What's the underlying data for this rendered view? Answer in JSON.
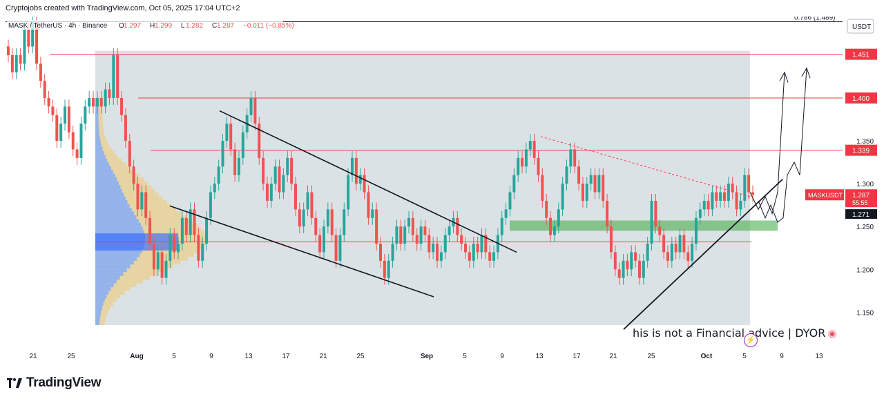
{
  "header": {
    "caption": "Cryptojobs created with TradingView.com, Oct 05, 2025 17:04 UTC+2",
    "symbol_line": "MASK / TetherUS · 4h · Binance",
    "ohlc": {
      "open_label": "O",
      "open": "1.297",
      "high_label": "H",
      "high": "1.299",
      "low_label": "L",
      "low": "1.282",
      "close_label": "C",
      "close": "1.287",
      "change": "−0.011 (−0.85%)"
    }
  },
  "currency_label": "USDT",
  "fib_label": "0.786 (1.489)",
  "price_tags": {
    "r1": "1.451",
    "r2": "1.400",
    "r3": "1.339",
    "symbol": "MASKUSDT",
    "last": "1.287",
    "countdown": "55:55",
    "marker": "1.271"
  },
  "disclaimer": "his is not a Financial advice | DYOR",
  "footer_brand": "TradingView",
  "colors": {
    "up": "#26a69a",
    "down": "#ef5350",
    "resistance": "#f23645",
    "demand_zone": "#4caf50",
    "vp_up": "#f5c452",
    "vp_down": "#5b8def",
    "background_shade": "#d5dde2"
  },
  "chart_data": {
    "type": "candlestick",
    "title": "MASK / TetherUS · 4h · Binance",
    "ylim": [
      1.11,
      1.495
    ],
    "y_ticks": [
      1.15,
      1.2,
      1.25,
      1.3,
      1.35
    ],
    "x_ticks": [
      "21",
      "25",
      "Aug",
      "5",
      "9",
      "13",
      "17",
      "21",
      "25",
      "Sep",
      "5",
      "9",
      "13",
      "17",
      "21",
      "25",
      "Oct",
      "5",
      "9",
      "13"
    ],
    "horizontal_levels": [
      1.451,
      1.4,
      1.339,
      1.232
    ],
    "fib_level": 1.489,
    "demand_zone": [
      1.245,
      1.257
    ],
    "series": [
      {
        "name": "MASKUSDT",
        "points": [
          [
            1.46,
            1.45
          ],
          [
            1.45,
            1.43
          ],
          [
            1.43,
            1.45
          ],
          [
            1.45,
            1.44
          ],
          [
            1.44,
            1.48
          ],
          [
            1.48,
            1.46
          ],
          [
            1.46,
            1.49
          ],
          [
            1.49,
            1.44
          ],
          [
            1.44,
            1.42
          ],
          [
            1.42,
            1.4
          ],
          [
            1.4,
            1.39
          ],
          [
            1.39,
            1.38
          ],
          [
            1.38,
            1.35
          ],
          [
            1.35,
            1.37
          ],
          [
            1.37,
            1.39
          ],
          [
            1.39,
            1.36
          ],
          [
            1.36,
            1.34
          ],
          [
            1.34,
            1.33
          ],
          [
            1.33,
            1.37
          ],
          [
            1.37,
            1.39
          ],
          [
            1.39,
            1.4
          ],
          [
            1.4,
            1.39
          ],
          [
            1.39,
            1.4
          ],
          [
            1.4,
            1.39
          ],
          [
            1.39,
            1.41
          ],
          [
            1.41,
            1.4
          ],
          [
            1.4,
            1.45
          ],
          [
            1.45,
            1.4
          ],
          [
            1.4,
            1.38
          ],
          [
            1.38,
            1.35
          ],
          [
            1.35,
            1.32
          ],
          [
            1.32,
            1.3
          ],
          [
            1.3,
            1.27
          ],
          [
            1.27,
            1.29
          ],
          [
            1.29,
            1.26
          ],
          [
            1.26,
            1.23
          ],
          [
            1.23,
            1.2
          ],
          [
            1.2,
            1.22
          ],
          [
            1.22,
            1.19
          ],
          [
            1.19,
            1.21
          ],
          [
            1.21,
            1.24
          ],
          [
            1.24,
            1.22
          ],
          [
            1.22,
            1.23
          ],
          [
            1.23,
            1.26
          ],
          [
            1.26,
            1.24
          ],
          [
            1.24,
            1.27
          ],
          [
            1.27,
            1.24
          ],
          [
            1.24,
            1.21
          ],
          [
            1.21,
            1.23
          ],
          [
            1.23,
            1.26
          ],
          [
            1.26,
            1.29
          ],
          [
            1.29,
            1.3
          ],
          [
            1.3,
            1.32
          ],
          [
            1.32,
            1.35
          ],
          [
            1.35,
            1.37
          ],
          [
            1.37,
            1.34
          ],
          [
            1.34,
            1.31
          ],
          [
            1.31,
            1.33
          ],
          [
            1.33,
            1.36
          ],
          [
            1.36,
            1.38
          ],
          [
            1.38,
            1.4
          ],
          [
            1.4,
            1.37
          ],
          [
            1.37,
            1.33
          ],
          [
            1.33,
            1.3
          ],
          [
            1.3,
            1.28
          ],
          [
            1.28,
            1.3
          ],
          [
            1.3,
            1.32
          ],
          [
            1.32,
            1.29
          ],
          [
            1.29,
            1.31
          ],
          [
            1.31,
            1.33
          ],
          [
            1.33,
            1.3
          ],
          [
            1.3,
            1.27
          ],
          [
            1.27,
            1.25
          ],
          [
            1.25,
            1.27
          ],
          [
            1.27,
            1.29
          ],
          [
            1.29,
            1.26
          ],
          [
            1.26,
            1.24
          ],
          [
            1.24,
            1.22
          ],
          [
            1.22,
            1.25
          ],
          [
            1.25,
            1.27
          ],
          [
            1.27,
            1.24
          ],
          [
            1.24,
            1.21
          ],
          [
            1.21,
            1.24
          ],
          [
            1.24,
            1.27
          ],
          [
            1.27,
            1.31
          ],
          [
            1.31,
            1.33
          ],
          [
            1.33,
            1.3
          ],
          [
            1.3,
            1.31
          ],
          [
            1.31,
            1.29
          ],
          [
            1.29,
            1.26
          ],
          [
            1.26,
            1.27
          ],
          [
            1.27,
            1.23
          ],
          [
            1.23,
            1.21
          ],
          [
            1.21,
            1.19
          ],
          [
            1.19,
            1.21
          ],
          [
            1.21,
            1.23
          ],
          [
            1.23,
            1.25
          ],
          [
            1.25,
            1.23
          ],
          [
            1.23,
            1.25
          ],
          [
            1.25,
            1.26
          ],
          [
            1.26,
            1.24
          ],
          [
            1.24,
            1.23
          ],
          [
            1.23,
            1.25
          ],
          [
            1.25,
            1.24
          ],
          [
            1.24,
            1.22
          ],
          [
            1.22,
            1.23
          ],
          [
            1.23,
            1.21
          ],
          [
            1.21,
            1.22
          ],
          [
            1.22,
            1.24
          ],
          [
            1.24,
            1.25
          ],
          [
            1.25,
            1.26
          ],
          [
            1.26,
            1.24
          ],
          [
            1.24,
            1.23
          ],
          [
            1.23,
            1.22
          ],
          [
            1.22,
            1.21
          ],
          [
            1.21,
            1.23
          ],
          [
            1.23,
            1.22
          ],
          [
            1.22,
            1.24
          ],
          [
            1.24,
            1.22
          ],
          [
            1.22,
            1.21
          ],
          [
            1.21,
            1.22
          ],
          [
            1.22,
            1.24
          ],
          [
            1.24,
            1.26
          ],
          [
            1.26,
            1.27
          ],
          [
            1.27,
            1.29
          ],
          [
            1.29,
            1.31
          ],
          [
            1.31,
            1.33
          ],
          [
            1.33,
            1.32
          ],
          [
            1.32,
            1.34
          ],
          [
            1.34,
            1.35
          ],
          [
            1.35,
            1.33
          ],
          [
            1.33,
            1.31
          ],
          [
            1.31,
            1.28
          ],
          [
            1.28,
            1.26
          ],
          [
            1.26,
            1.24
          ],
          [
            1.24,
            1.25
          ],
          [
            1.25,
            1.27
          ],
          [
            1.27,
            1.3
          ],
          [
            1.3,
            1.32
          ],
          [
            1.32,
            1.34
          ],
          [
            1.34,
            1.32
          ],
          [
            1.32,
            1.3
          ],
          [
            1.3,
            1.28
          ],
          [
            1.28,
            1.3
          ],
          [
            1.3,
            1.31
          ],
          [
            1.31,
            1.29
          ],
          [
            1.29,
            1.31
          ],
          [
            1.31,
            1.28
          ],
          [
            1.28,
            1.25
          ],
          [
            1.25,
            1.22
          ],
          [
            1.22,
            1.2
          ],
          [
            1.2,
            1.19
          ],
          [
            1.19,
            1.21
          ],
          [
            1.21,
            1.2
          ],
          [
            1.2,
            1.22
          ],
          [
            1.22,
            1.21
          ],
          [
            1.21,
            1.19
          ],
          [
            1.19,
            1.21
          ],
          [
            1.21,
            1.23
          ],
          [
            1.23,
            1.28
          ],
          [
            1.28,
            1.25
          ],
          [
            1.25,
            1.24
          ],
          [
            1.24,
            1.22
          ],
          [
            1.22,
            1.21
          ],
          [
            1.21,
            1.23
          ],
          [
            1.23,
            1.22
          ],
          [
            1.22,
            1.24
          ],
          [
            1.24,
            1.22
          ],
          [
            1.22,
            1.21
          ],
          [
            1.21,
            1.23
          ],
          [
            1.23,
            1.26
          ],
          [
            1.26,
            1.27
          ],
          [
            1.27,
            1.28
          ],
          [
            1.28,
            1.27
          ],
          [
            1.27,
            1.29
          ],
          [
            1.29,
            1.28
          ],
          [
            1.28,
            1.29
          ],
          [
            1.29,
            1.28
          ],
          [
            1.28,
            1.3
          ],
          [
            1.3,
            1.29
          ],
          [
            1.29,
            1.27
          ],
          [
            1.27,
            1.28
          ],
          [
            1.28,
            1.31
          ],
          [
            1.31,
            1.29
          ],
          [
            1.29,
            1.287
          ]
        ],
        "point_format": "[open, close]"
      }
    ]
  }
}
